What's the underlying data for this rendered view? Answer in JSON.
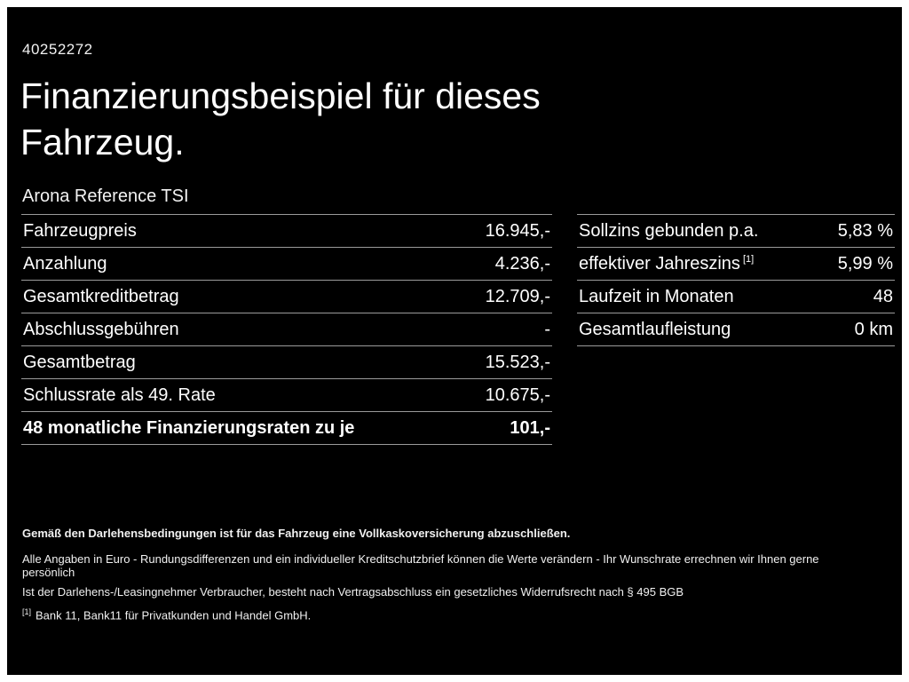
{
  "page": {
    "id_number": "40252272",
    "title_line1": "Finanzierungsbeispiel für dieses",
    "title_line2": "Fahrzeug.",
    "subtitle": "Arona Reference TSI"
  },
  "left_table": {
    "rows": [
      {
        "label": "Fahrzeugpreis",
        "value": "16.945,-"
      },
      {
        "label": "Anzahlung",
        "value": "4.236,-"
      },
      {
        "label": "Gesamtkreditbetrag",
        "value": "12.709,-"
      },
      {
        "label": "Abschlussgebühren",
        "value": "-"
      },
      {
        "label": "Gesamtbetrag",
        "value": "15.523,-"
      },
      {
        "label": "Schlussrate als 49. Rate",
        "value": "10.675,-"
      },
      {
        "label": "48 monatliche Finanzierungsraten zu je",
        "value": "101,-"
      }
    ]
  },
  "right_table": {
    "rows": [
      {
        "label": "Sollzins gebunden p.a.",
        "sup": "",
        "value": "5,83 %"
      },
      {
        "label": "effektiver Jahreszins",
        "sup": "[1]",
        "value": "5,99 %"
      },
      {
        "label": "Laufzeit in Monaten",
        "sup": "",
        "value": "48"
      },
      {
        "label": "Gesamtlaufleistung",
        "sup": "",
        "value": "0 km"
      }
    ]
  },
  "footer": {
    "bold_line": "Gemäß den Darlehensbedingungen ist für das Fahrzeug eine Vollkaskoversicherung abzuschließen.",
    "line2": "Alle Angaben in Euro - Rundungsdifferenzen und ein individueller Kreditschutzbrief können die Werte verändern - Ihr Wunschrate errechnen wir Ihnen gerne persönlich",
    "line3": "Ist der Darlehens-/Leasingnehmer Verbraucher, besteht nach Vertragsabschluss ein gesetzliches Widerrufsrecht nach § 495 BGB",
    "footnote_marker": "[1]",
    "footnote_text": "Bank 11, Bank11 für Privatkunden und Handel GmbH."
  }
}
